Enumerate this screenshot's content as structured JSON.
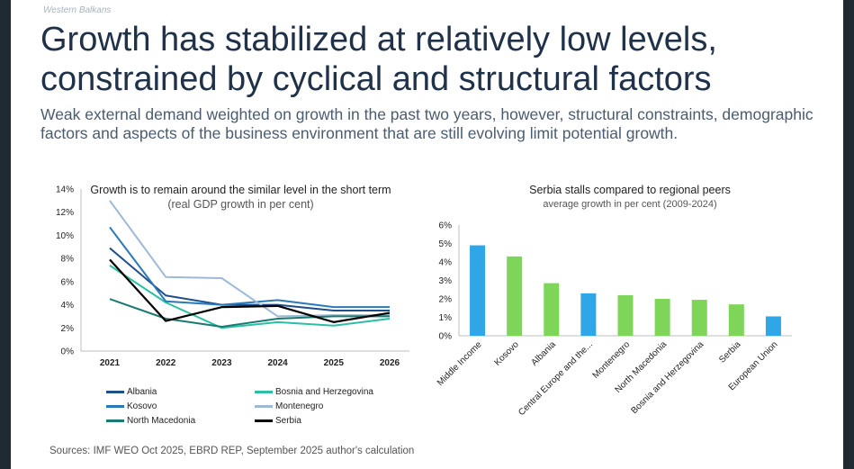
{
  "section_label": "Western Balkans",
  "title": "Growth has stabilized at relatively low levels, constrained by cyclical and structural factors",
  "subtitle": "Weak external demand weighted on growth in the past two years, however, structural constraints, demographic factors and aspects of the business environment that are still evolving limit potential growth.",
  "source": "Sources: IMF WEO Oct 2025, EBRD REP, September 2025 author's calculation",
  "line_chart": {
    "title_main": "Growth is to remain around the similar level in the short term",
    "title_sub": "(real GDP growth in per cent)"
  },
  "bar_chart": {
    "title": "Serbia stalls compared to regional peers",
    "subtitle": "average growth in per cent (2009-2024)"
  },
  "chart_data": [
    {
      "type": "line",
      "title": "Growth is to remain around the similar level in the short term (real GDP growth in per cent)",
      "x": [
        "2021",
        "2022",
        "2023",
        "2024",
        "2025",
        "2026"
      ],
      "ylim": [
        0,
        14
      ],
      "yticks": [
        "0%",
        "2%",
        "4%",
        "6%",
        "8%",
        "10%",
        "12%",
        "14%"
      ],
      "legend_position": "bottom",
      "series": [
        {
          "name": "Albania",
          "color": "#1f4e8c",
          "values": [
            8.9,
            4.8,
            4.0,
            4.0,
            3.5,
            3.5
          ]
        },
        {
          "name": "Bosnia and Herzegovina",
          "color": "#2bbfa4",
          "values": [
            7.4,
            4.2,
            2.0,
            2.5,
            2.2,
            2.8
          ]
        },
        {
          "name": "Kosovo",
          "color": "#2a7ab8",
          "values": [
            10.7,
            4.3,
            4.0,
            4.4,
            3.8,
            3.8
          ]
        },
        {
          "name": "Montenegro",
          "color": "#9db9d6",
          "values": [
            13.0,
            6.4,
            6.3,
            3.0,
            3.1,
            3.1
          ]
        },
        {
          "name": "North Macedonia",
          "color": "#1a7a72",
          "values": [
            4.5,
            2.8,
            2.1,
            2.8,
            3.0,
            3.0
          ]
        },
        {
          "name": "Serbia",
          "color": "#000000",
          "values": [
            7.9,
            2.6,
            3.8,
            3.9,
            2.5,
            3.3
          ]
        }
      ]
    },
    {
      "type": "bar",
      "title": "Serbia stalls compared to regional peers",
      "subtitle": "average growth in per cent (2009-2024)",
      "ylim": [
        0,
        6
      ],
      "yticks": [
        "0%",
        "1%",
        "2%",
        "3%",
        "4%",
        "5%",
        "6%"
      ],
      "categories": [
        "Middle Income",
        "Kosovo",
        "Albania",
        "Central Europe and the...",
        "Montenegro",
        "North Macedonia",
        "Bosnia and Herzegovina",
        "Serbia",
        "European Union"
      ],
      "values": [
        4.9,
        4.3,
        2.85,
        2.3,
        2.2,
        2.0,
        1.95,
        1.7,
        1.05
      ],
      "colors": [
        "#2ea6e8",
        "#7fd45a",
        "#7fd45a",
        "#2ea6e8",
        "#7fd45a",
        "#7fd45a",
        "#7fd45a",
        "#7fd45a",
        "#2ea6e8"
      ]
    }
  ]
}
